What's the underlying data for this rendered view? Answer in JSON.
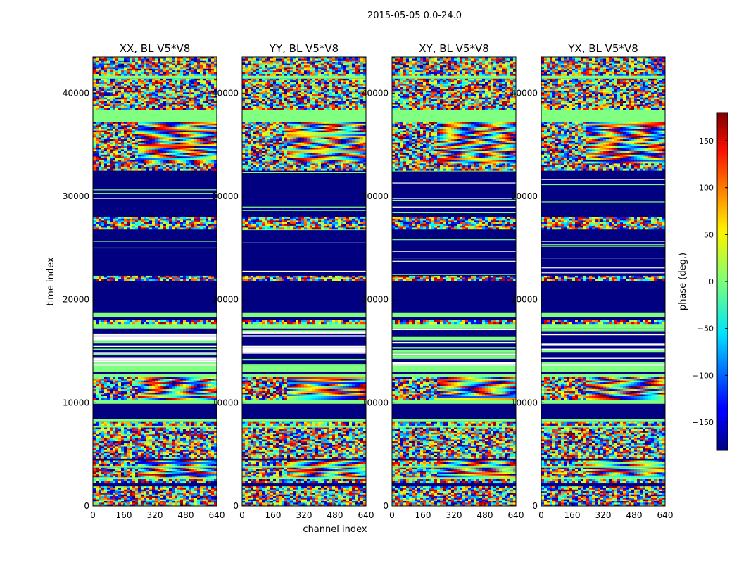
{
  "suptitle": "2015-05-05 0.0-24.0",
  "chart_data": {
    "type": "heatmap",
    "title": "2015-05-05 0.0-24.0",
    "xlabel": "channel index",
    "ylabel": "time index",
    "xlim": [
      0,
      640
    ],
    "ylim": [
      0,
      43500
    ],
    "xticks": [
      0,
      160,
      320,
      480,
      640
    ],
    "yticks": [
      0,
      10000,
      20000,
      30000,
      40000
    ],
    "colormap": "jet",
    "colorbar": {
      "label": "phase (deg.)",
      "range": [
        -180,
        180
      ],
      "ticks": [
        -150,
        -100,
        -50,
        0,
        50,
        100,
        150
      ]
    },
    "panels": [
      {
        "title": "XX, BL V5*V8",
        "correlation": "XX"
      },
      {
        "title": "YY, BL V5*V8",
        "correlation": "YY"
      },
      {
        "title": "XY, BL V5*V8",
        "correlation": "XY"
      },
      {
        "title": "YX, BL V5*V8",
        "correlation": "YX"
      }
    ],
    "flagged_value": -180,
    "time_bands": [
      {
        "from": 0,
        "to": 1900,
        "kind": "noise"
      },
      {
        "from": 1900,
        "to": 2200,
        "kind": "flag"
      },
      {
        "from": 2200,
        "to": 2600,
        "kind": "noise"
      },
      {
        "from": 2600,
        "to": 2800,
        "kind": "green"
      },
      {
        "from": 2800,
        "to": 3700,
        "kind": "fringe"
      },
      {
        "from": 3700,
        "to": 3900,
        "kind": "green"
      },
      {
        "from": 3900,
        "to": 4400,
        "kind": "fringe"
      },
      {
        "from": 4400,
        "to": 4600,
        "kind": "flag"
      },
      {
        "from": 4600,
        "to": 7600,
        "kind": "noise"
      },
      {
        "from": 7600,
        "to": 7800,
        "kind": "green"
      },
      {
        "from": 7800,
        "to": 8200,
        "kind": "noise"
      },
      {
        "from": 8200,
        "to": 8400,
        "kind": "green"
      },
      {
        "from": 8400,
        "to": 9900,
        "kind": "flag"
      },
      {
        "from": 9900,
        "to": 10300,
        "kind": "green"
      },
      {
        "from": 10300,
        "to": 12500,
        "kind": "fringe"
      },
      {
        "from": 12500,
        "to": 12800,
        "kind": "green"
      },
      {
        "from": 12800,
        "to": 13000,
        "kind": "flag"
      },
      {
        "from": 13000,
        "to": 13600,
        "kind": "green"
      },
      {
        "from": 13600,
        "to": 17200,
        "kind": "striped"
      },
      {
        "from": 17200,
        "to": 17600,
        "kind": "green"
      },
      {
        "from": 17600,
        "to": 18000,
        "kind": "noise"
      },
      {
        "from": 18000,
        "to": 18300,
        "kind": "flag"
      },
      {
        "from": 18300,
        "to": 18700,
        "kind": "green"
      },
      {
        "from": 18700,
        "to": 19200,
        "kind": "flag"
      },
      {
        "from": 19200,
        "to": 21800,
        "kind": "flag"
      },
      {
        "from": 21800,
        "to": 22300,
        "kind": "noise"
      },
      {
        "from": 22300,
        "to": 26800,
        "kind": "flagsparse"
      },
      {
        "from": 26800,
        "to": 28000,
        "kind": "noise"
      },
      {
        "from": 28000,
        "to": 32500,
        "kind": "flagsparse"
      },
      {
        "from": 32500,
        "to": 33200,
        "kind": "noise"
      },
      {
        "from": 33200,
        "to": 37200,
        "kind": "fringe"
      },
      {
        "from": 37200,
        "to": 38400,
        "kind": "green"
      },
      {
        "from": 38400,
        "to": 41400,
        "kind": "noise"
      },
      {
        "from": 41400,
        "to": 41700,
        "kind": "green"
      },
      {
        "from": 41700,
        "to": 43500,
        "kind": "noise"
      }
    ]
  }
}
